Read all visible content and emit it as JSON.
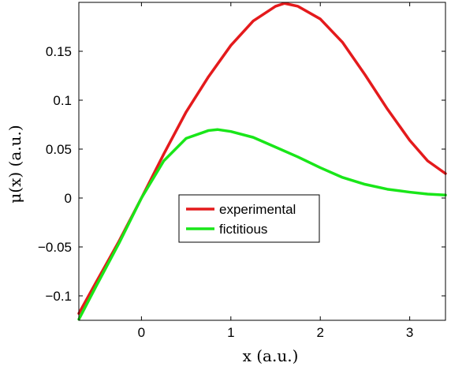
{
  "chart_data": {
    "type": "line",
    "xlabel": "x (a.u.)",
    "ylabel": "μ(x) (a.u.)",
    "xlim": [
      -0.7,
      3.4
    ],
    "ylim": [
      -0.125,
      0.2
    ],
    "xticks": [
      0,
      1,
      2,
      3
    ],
    "xtick_labels": [
      "0",
      "1",
      "2",
      "3"
    ],
    "yticks": [
      -0.1,
      -0.05,
      0,
      0.05,
      0.1,
      0.15
    ],
    "ytick_labels": [
      "−0.1",
      "−0.05",
      "0",
      "0.05",
      "0.1",
      "0.15"
    ],
    "grid": false,
    "legend_position": "center",
    "series": [
      {
        "name": "experimental",
        "color": "#e41a1c",
        "x": [
          -0.7,
          -0.5,
          -0.25,
          0,
          0.25,
          0.5,
          0.75,
          1.0,
          1.25,
          1.5,
          1.6,
          1.75,
          2.0,
          2.25,
          2.5,
          2.75,
          3.0,
          3.2,
          3.4
        ],
        "y": [
          -0.118,
          -0.085,
          -0.044,
          0.0,
          0.045,
          0.088,
          0.124,
          0.156,
          0.181,
          0.196,
          0.199,
          0.196,
          0.183,
          0.159,
          0.126,
          0.091,
          0.059,
          0.038,
          0.025
        ]
      },
      {
        "name": "fictitious",
        "color": "#19e619",
        "x": [
          -0.7,
          -0.5,
          -0.25,
          0,
          0.25,
          0.5,
          0.75,
          0.85,
          1.0,
          1.25,
          1.5,
          1.75,
          2.0,
          2.25,
          2.5,
          2.75,
          3.0,
          3.2,
          3.4
        ],
        "y": [
          -0.124,
          -0.089,
          -0.046,
          0.0,
          0.038,
          0.061,
          0.069,
          0.07,
          0.068,
          0.062,
          0.052,
          0.042,
          0.031,
          0.021,
          0.014,
          0.009,
          0.006,
          0.004,
          0.003
        ]
      }
    ]
  }
}
